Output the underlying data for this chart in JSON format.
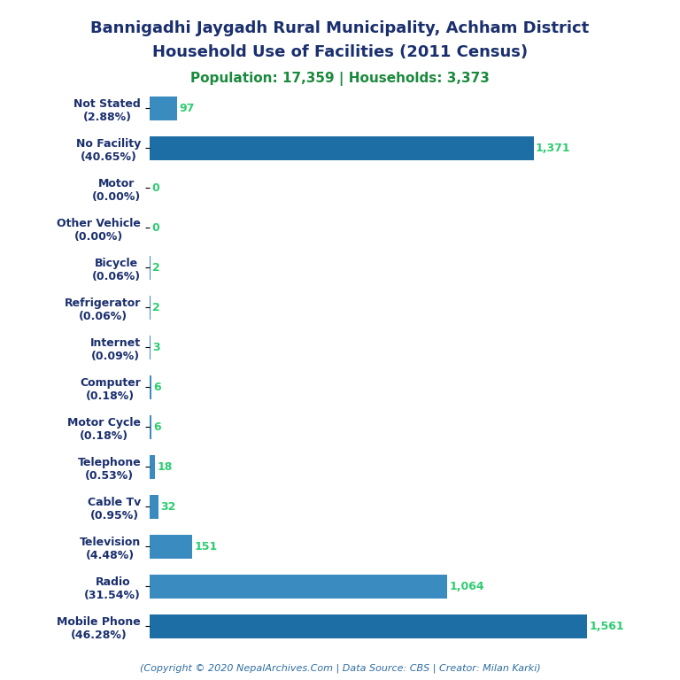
{
  "title_line1": "Bannigadhi Jaygadh Rural Municipality, Achham District",
  "title_line2": "Household Use of Facilities (2011 Census)",
  "subtitle": "Population: 17,359 | Households: 3,373",
  "footer": "(Copyright © 2020 NepalArchives.Com | Data Source: CBS | Creator: Milan Karki)",
  "categories": [
    "Mobile Phone\n(46.28%)",
    "Radio\n(31.54%)",
    "Television\n(4.48%)",
    "Cable Tv\n(0.95%)",
    "Telephone\n(0.53%)",
    "Motor Cycle\n(0.18%)",
    "Computer\n(0.18%)",
    "Internet\n(0.09%)",
    "Refrigerator\n(0.06%)",
    "Bicycle\n(0.06%)",
    "Other Vehicle\n(0.00%)",
    "Motor\n(0.00%)",
    "No Facility\n(40.65%)",
    "Not Stated\n(2.88%)"
  ],
  "values": [
    1561,
    1064,
    151,
    32,
    18,
    6,
    6,
    3,
    2,
    2,
    0,
    0,
    1371,
    97
  ],
  "bar_color_main": "#3a7ebf",
  "bar_color_alt": "#1a5276",
  "title_color": "#1a2f6e",
  "subtitle_color": "#1a8a3c",
  "footer_color": "#2e6da4",
  "value_color": "#2ecc71",
  "label_color": "#1a2f6e",
  "background_color": "#ffffff",
  "xlim": [
    0,
    1700
  ]
}
